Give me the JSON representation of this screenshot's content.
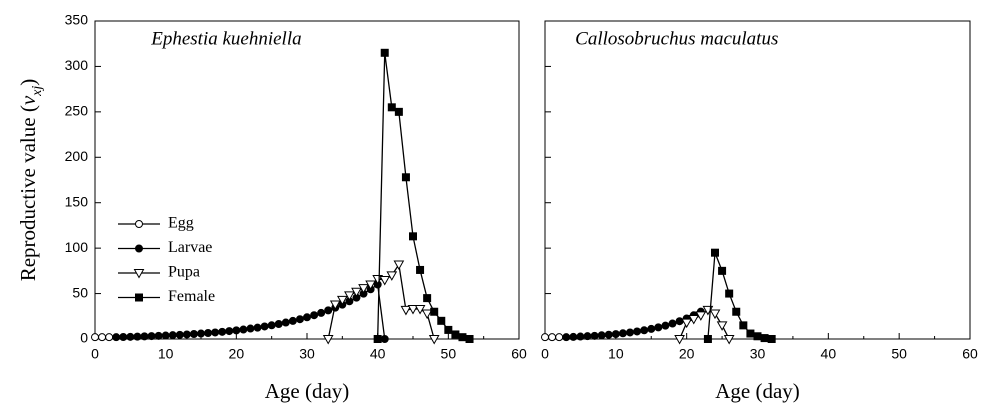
{
  "chart_data": [
    {
      "type": "line",
      "title": "Ephestia kuehniella",
      "xlabel": "Age (day)",
      "ylabel": {
        "text": "Reproductive value (",
        "var": "v",
        "sub": "xj",
        "end": ")"
      },
      "xlim": [
        0,
        60
      ],
      "xticks": [
        0,
        10,
        20,
        30,
        40,
        50,
        60
      ],
      "ylim": [
        0,
        350
      ],
      "yticks": [
        0,
        50,
        100,
        150,
        200,
        250,
        300,
        350
      ],
      "legend": "center-left",
      "series": [
        {
          "name": "Egg",
          "color": "#000000",
          "marker": "open-circle",
          "x": [
            0,
            1,
            2
          ],
          "values": [
            2,
            2,
            2
          ]
        },
        {
          "name": "Larvae",
          "color": "#000000",
          "marker": "filled-circle",
          "x": [
            3,
            4,
            5,
            6,
            7,
            8,
            9,
            10,
            11,
            12,
            13,
            14,
            15,
            16,
            17,
            18,
            19,
            20,
            21,
            22,
            23,
            24,
            25,
            26,
            27,
            28,
            29,
            30,
            31,
            32,
            33,
            34,
            35,
            36,
            37,
            38,
            39,
            40,
            41
          ],
          "values": [
            2.0,
            2.2,
            2.4,
            2.6,
            2.9,
            3.2,
            3.5,
            3.8,
            4.2,
            4.6,
            5.0,
            5.5,
            6.0,
            6.6,
            7.2,
            7.9,
            8.7,
            9.5,
            10.4,
            11.5,
            12.5,
            13.8,
            15.1,
            16.5,
            18.1,
            19.9,
            21.8,
            23.9,
            26.2,
            28.7,
            31.5,
            34.5,
            37.8,
            41.5,
            45.5,
            49.9,
            54.7,
            60.0,
            0
          ]
        },
        {
          "name": "Pupa",
          "color": "#000000",
          "marker": "open-triangle",
          "x": [
            33,
            34,
            35,
            36,
            37,
            38,
            39,
            40,
            41,
            42,
            43,
            44,
            45,
            46,
            47,
            48
          ],
          "values": [
            0,
            38,
            43,
            48,
            52,
            56,
            60,
            66,
            65,
            70,
            82,
            32,
            33,
            33,
            28,
            0
          ]
        },
        {
          "name": "Female",
          "color": "#000000",
          "marker": "filled-square",
          "x": [
            40,
            41,
            42,
            43,
            44,
            45,
            46,
            47,
            48,
            49,
            50,
            51,
            52,
            53
          ],
          "values": [
            0,
            315,
            255,
            250,
            178,
            113,
            76,
            45,
            30,
            20,
            10,
            5,
            2,
            0
          ]
        }
      ]
    },
    {
      "type": "line",
      "title": "Callosobruchus maculatus",
      "xlabel": "Age (day)",
      "xlim": [
        0,
        60
      ],
      "xticks": [
        0,
        10,
        20,
        30,
        40,
        50,
        60
      ],
      "ylim": [
        0,
        350
      ],
      "yticks": [
        0,
        50,
        100,
        150,
        200,
        250,
        300,
        350
      ],
      "series": [
        {
          "color": "#000000",
          "marker": "open-circle",
          "x": [
            0,
            1,
            2
          ],
          "values": [
            2,
            2,
            2
          ]
        },
        {
          "color": "#000000",
          "marker": "filled-circle",
          "x": [
            3,
            4,
            5,
            6,
            7,
            8,
            9,
            10,
            11,
            12,
            13,
            14,
            15,
            16,
            17,
            18,
            19,
            20,
            21,
            22
          ],
          "values": [
            2.0,
            2.3,
            2.7,
            3.1,
            3.5,
            4.1,
            4.7,
            5.4,
            6.3,
            7.2,
            8.3,
            9.6,
            11.1,
            12.8,
            14.7,
            17.0,
            19.6,
            22.6,
            26.1,
            30.1
          ]
        },
        {
          "color": "#000000",
          "marker": "open-triangle",
          "x": [
            19,
            20,
            21,
            22,
            23,
            24,
            25,
            26
          ],
          "values": [
            0,
            18,
            22,
            26,
            32,
            28,
            15,
            0
          ]
        },
        {
          "color": "#000000",
          "marker": "filled-square",
          "x": [
            23,
            24,
            25,
            26,
            27,
            28,
            29,
            30,
            31,
            32
          ],
          "values": [
            0,
            95,
            75,
            50,
            30,
            15,
            6,
            3,
            1,
            0
          ]
        }
      ]
    }
  ]
}
